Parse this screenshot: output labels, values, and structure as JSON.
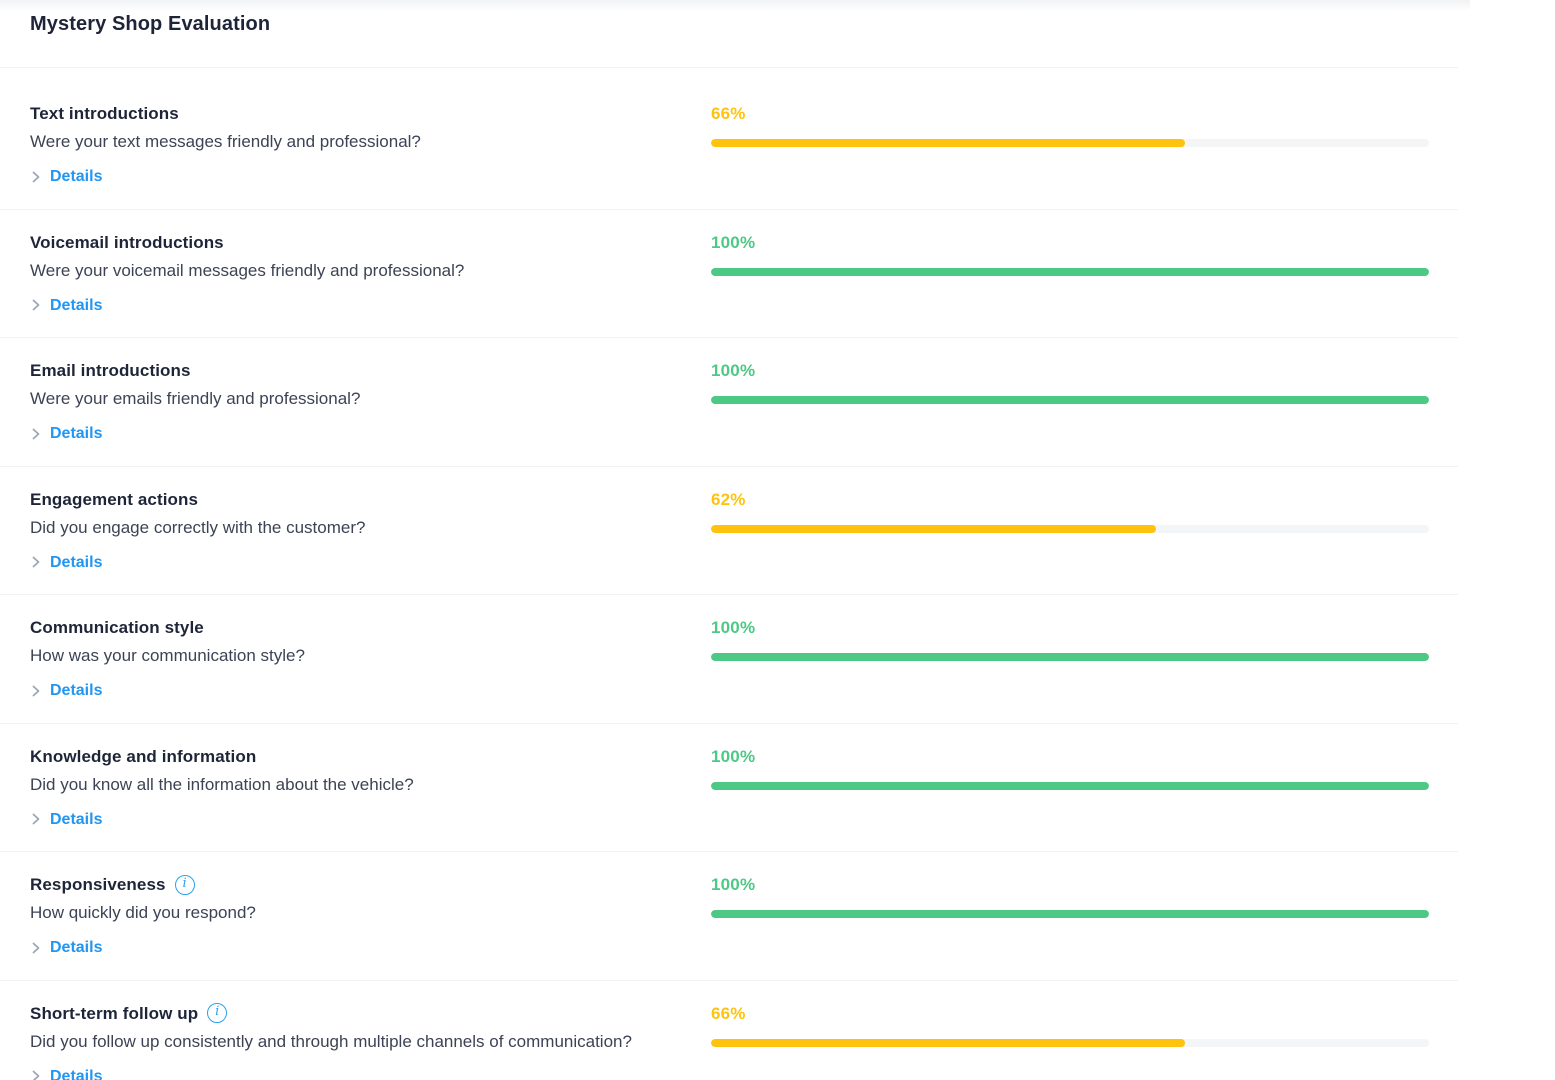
{
  "page": {
    "title": "Mystery Shop Evaluation"
  },
  "shared": {
    "details_label": "Details",
    "info_icon_glyph": "i"
  },
  "colors": {
    "yellow": "#FFC30D",
    "green": "#4DC885",
    "link_blue": "#2196F3",
    "chevron_gray": "#9aa7b8",
    "track_gray": "#F4F5F6"
  },
  "rows": [
    {
      "title": "Text introductions",
      "description": "Were your text messages friendly and professional?",
      "score_label": "66%",
      "score_value": 66,
      "score_color": "yellow",
      "has_info_icon": false
    },
    {
      "title": "Voicemail introductions",
      "description": "Were your voicemail messages friendly and professional?",
      "score_label": "100%",
      "score_value": 100,
      "score_color": "green",
      "has_info_icon": false
    },
    {
      "title": "Email introductions",
      "description": "Were your emails friendly and professional?",
      "score_label": "100%",
      "score_value": 100,
      "score_color": "green",
      "has_info_icon": false
    },
    {
      "title": "Engagement actions",
      "description": "Did you engage correctly with the customer?",
      "score_label": "62%",
      "score_value": 62,
      "score_color": "yellow",
      "has_info_icon": false
    },
    {
      "title": "Communication style",
      "description": "How was your communication style?",
      "score_label": "100%",
      "score_value": 100,
      "score_color": "green",
      "has_info_icon": false
    },
    {
      "title": "Knowledge and information",
      "description": "Did you know all the information about the vehicle?",
      "score_label": "100%",
      "score_value": 100,
      "score_color": "green",
      "has_info_icon": false
    },
    {
      "title": "Responsiveness",
      "description": "How quickly did you respond?",
      "score_label": "100%",
      "score_value": 100,
      "score_color": "green",
      "has_info_icon": true
    },
    {
      "title": "Short-term follow up",
      "description": "Did you follow up consistently and through multiple channels of communication?",
      "score_label": "66%",
      "score_value": 66,
      "score_color": "yellow",
      "has_info_icon": true
    }
  ]
}
